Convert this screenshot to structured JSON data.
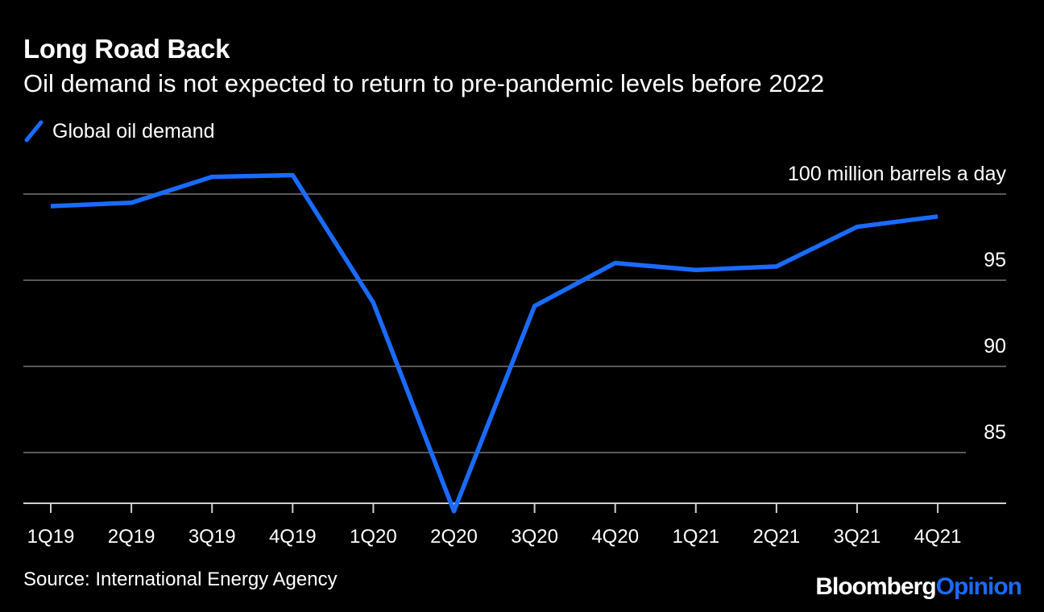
{
  "title": "Long Road Back",
  "subtitle": "Oil demand is not expected to return to pre-pandemic levels before 2022",
  "legend": {
    "label": "Global oil demand",
    "color": "#1a6bff",
    "icon": "diagonal-line-icon"
  },
  "source": "Source: International Energy Agency",
  "brand": {
    "part1": "Bloomberg",
    "part2": "Opinion"
  },
  "colors": {
    "background": "#000000",
    "line": "#1a6bff",
    "grid": "#595959",
    "text": "#ffffff"
  },
  "chart_data": {
    "type": "line",
    "categories": [
      "1Q19",
      "2Q19",
      "3Q19",
      "4Q19",
      "1Q20",
      "2Q20",
      "3Q20",
      "4Q20",
      "1Q21",
      "2Q21",
      "3Q21",
      "4Q21"
    ],
    "series": [
      {
        "name": "Global oil demand",
        "values": [
          99.3,
          99.5,
          101.0,
          101.1,
          93.7,
          81.6,
          93.5,
          96.0,
          95.6,
          95.8,
          98.1,
          98.7
        ]
      }
    ],
    "ylim": [
      82,
      104
    ],
    "yticks": [
      {
        "value": 100,
        "label": "100 million barrels a day"
      },
      {
        "value": 95,
        "label": "95"
      },
      {
        "value": 90,
        "label": "90"
      },
      {
        "value": 85,
        "label": "85"
      }
    ],
    "grid": true,
    "y_axis_side": "right",
    "legend_position": "top-left"
  }
}
